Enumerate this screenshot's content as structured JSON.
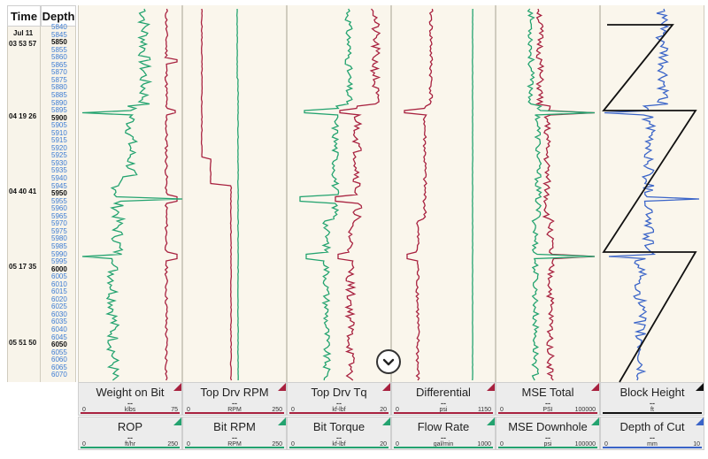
{
  "header": {
    "time_label": "Time",
    "depth_label": "Depth"
  },
  "time_rows": [
    {
      "text": "Jul 11"
    },
    {
      "text": "03 53 57"
    },
    {
      "text": "04 19 26"
    },
    {
      "text": "04 40 41"
    },
    {
      "text": "05 17 35"
    },
    {
      "text": "05 51 50"
    }
  ],
  "depth_rows": [
    "5840",
    "5845",
    "5850",
    "5855",
    "5860",
    "5865",
    "5870",
    "5875",
    "5880",
    "5885",
    "5890",
    "5895",
    "5900",
    "5905",
    "5910",
    "5915",
    "5920",
    "5925",
    "5930",
    "5935",
    "5940",
    "5945",
    "5950",
    "5955",
    "5960",
    "5965",
    "5970",
    "5975",
    "5980",
    "5985",
    "5990",
    "5995",
    "6000",
    "6005",
    "6010",
    "6015",
    "6020",
    "6025",
    "6030",
    "6035",
    "6040",
    "6045",
    "6050",
    "6055",
    "6060",
    "6065",
    "6070"
  ],
  "legends_top": [
    {
      "name": "Weight on Bit",
      "dash": "--",
      "lo": "0",
      "unit": "klbs",
      "hi": "75",
      "color": "#a8213f"
    },
    {
      "name": "Top Drv RPM",
      "dash": "--",
      "lo": "0",
      "unit": "RPM",
      "hi": "250",
      "color": "#a8213f"
    },
    {
      "name": "Top Drv Tq",
      "dash": "--",
      "lo": "0",
      "unit": "kf-lbf",
      "hi": "20",
      "color": "#a8213f"
    },
    {
      "name": "Differential",
      "dash": "--",
      "lo": "0",
      "unit": "psi",
      "hi": "1150",
      "color": "#a8213f"
    },
    {
      "name": "MSE Total",
      "dash": "--",
      "lo": "0",
      "unit": "PSI",
      "hi": "100000",
      "color": "#a8213f"
    },
    {
      "name": "Block Height",
      "dash": "--",
      "lo": "",
      "unit": "ft",
      "hi": "",
      "color": "#111111"
    }
  ],
  "legends_bottom": [
    {
      "name": "ROP",
      "dash": "--",
      "lo": "0",
      "unit": "ft/hr",
      "hi": "250",
      "color": "#23a36f"
    },
    {
      "name": "Bit RPM",
      "dash": "--",
      "lo": "0",
      "unit": "RPM",
      "hi": "250",
      "color": "#23a36f"
    },
    {
      "name": "Bit Torque",
      "dash": "--",
      "lo": "0",
      "unit": "kf-lbf",
      "hi": "20",
      "color": "#23a36f"
    },
    {
      "name": "Flow Rate",
      "dash": "--",
      "lo": "0",
      "unit": "gal/min",
      "hi": "1000",
      "color": "#23a36f"
    },
    {
      "name": "MSE Downhole",
      "dash": "--",
      "lo": "0",
      "unit": "psi",
      "hi": "100000",
      "color": "#23a36f"
    },
    {
      "name": "Depth of Cut",
      "dash": "--",
      "lo": "0",
      "unit": "mm",
      "hi": "10",
      "color": "#3a64c8"
    }
  ],
  "colors": {
    "red": "#a8213f",
    "green": "#23a36f",
    "blue": "#3a64c8",
    "black": "#111111"
  },
  "scroll_button_icon": "chevron-down-icon"
}
